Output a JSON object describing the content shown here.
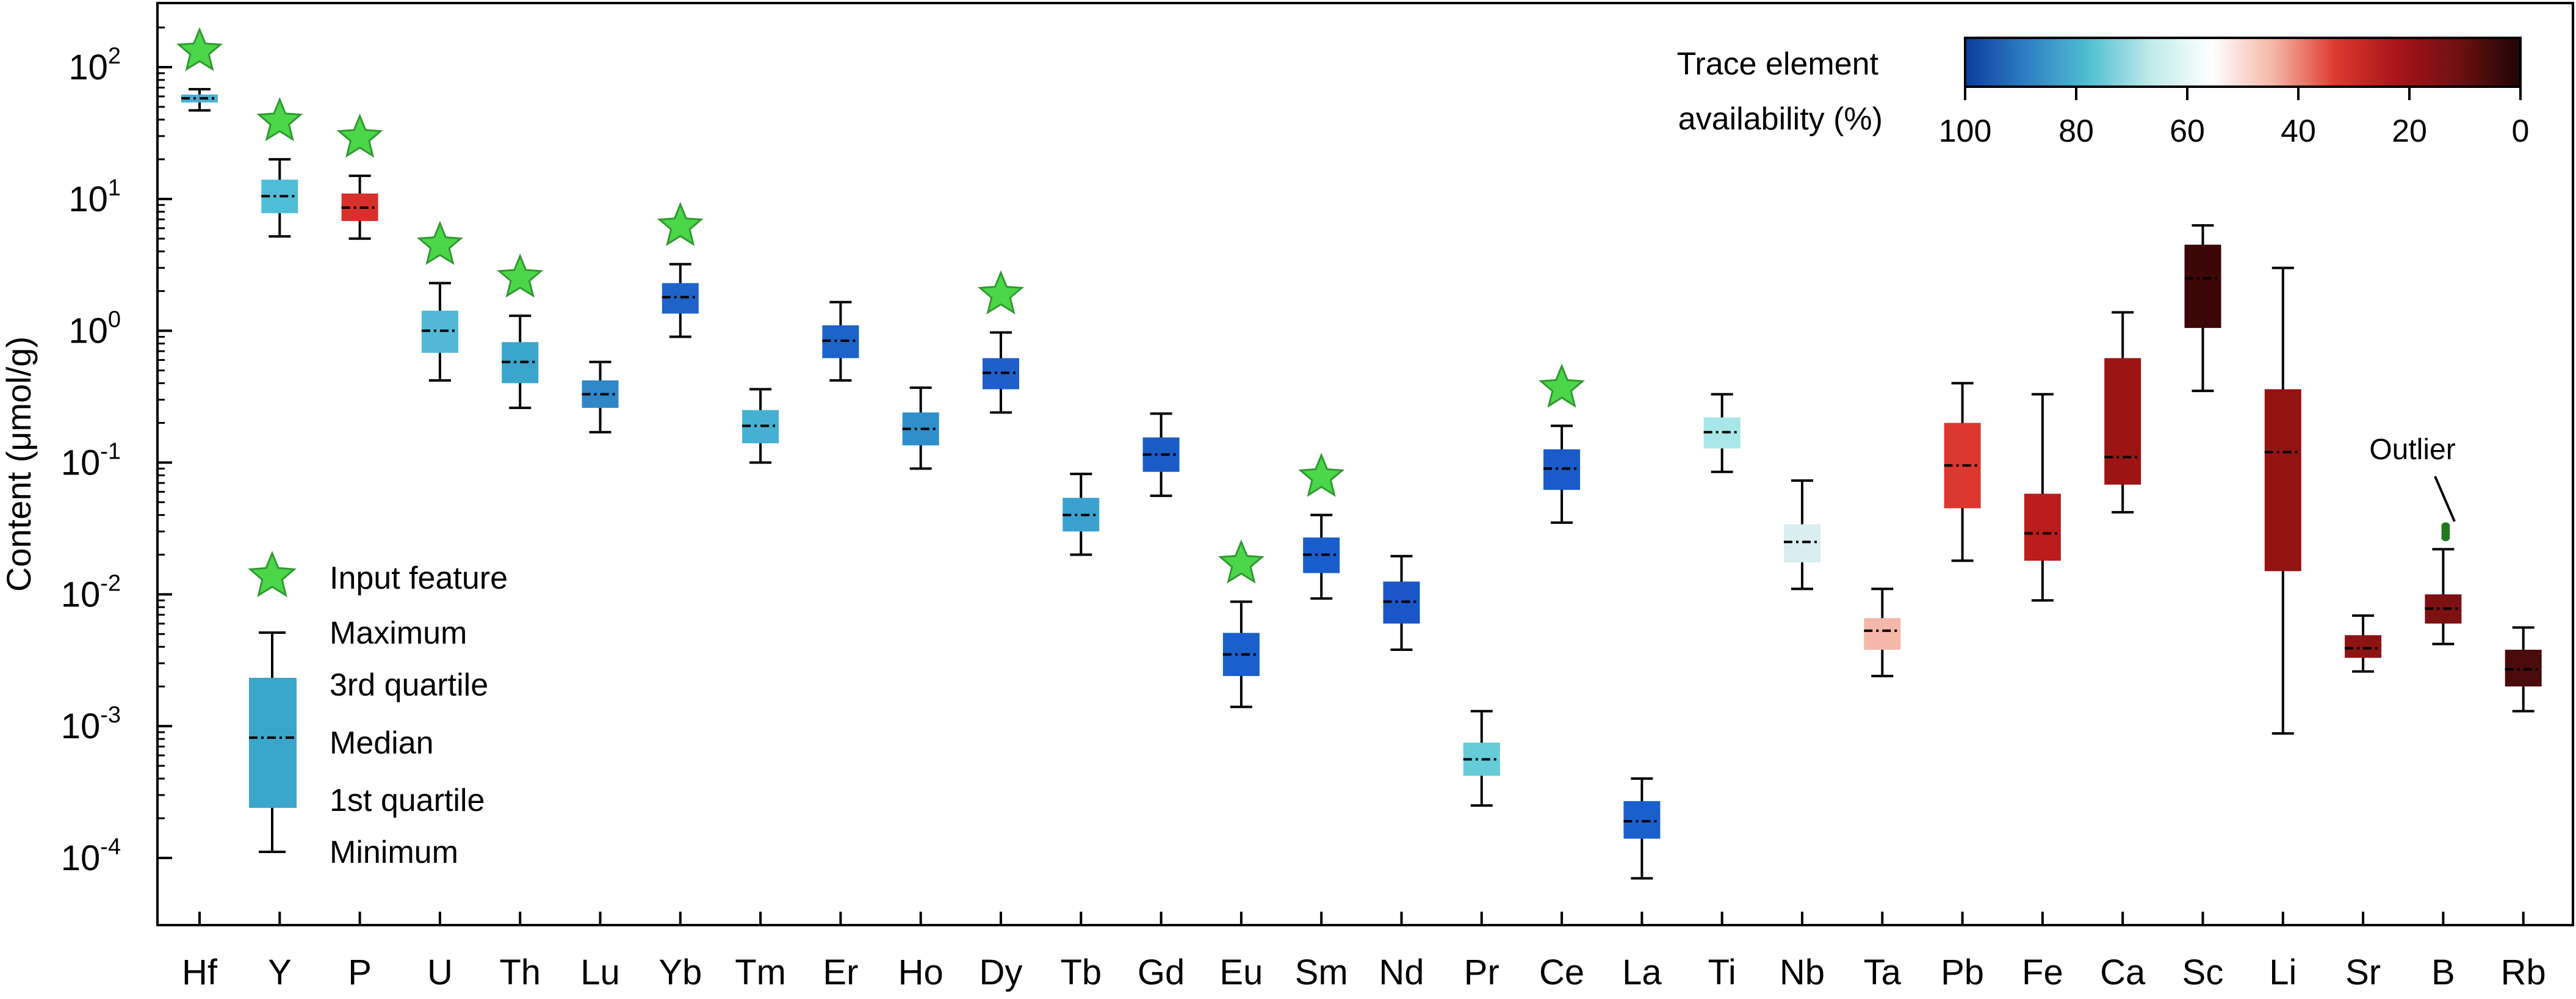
{
  "chart_data": {
    "type": "box",
    "ylabel": "Content (μmol/g)",
    "yscale": "log",
    "ylim": [
      3e-05,
      300
    ],
    "y_ticks": [
      {
        "value": 100,
        "base": "10",
        "exp": "2"
      },
      {
        "value": 10,
        "base": "10",
        "exp": "1"
      },
      {
        "value": 1,
        "base": "10",
        "exp": "0"
      },
      {
        "value": 0.1,
        "base": "10",
        "exp": "-1"
      },
      {
        "value": 0.01,
        "base": "10",
        "exp": "-2"
      },
      {
        "value": 0.001,
        "base": "10",
        "exp": "-3"
      },
      {
        "value": 0.0001,
        "base": "10",
        "exp": "-4"
      }
    ],
    "colorbar": {
      "title_line1": "Trace element",
      "title_line2": "availability (%)",
      "ticks": [
        "100",
        "80",
        "60",
        "40",
        "20",
        "0"
      ],
      "colors": [
        "#0a3d9e",
        "#2f7fc4",
        "#4fbfd0",
        "#bfeaea",
        "#ffffff",
        "#f4b6a6",
        "#de3a2e",
        "#a8141a",
        "#6e1010",
        "#1e0505"
      ]
    },
    "legend": {
      "input_feature": "Input feature",
      "maximum": "Maximum",
      "q3": "3rd quartile",
      "median": "Median",
      "q1": "1st quartile",
      "minimum": "Minimum",
      "box_color": "#3aa6cc"
    },
    "outlier_label": "Outlier",
    "star_color": "#4cd64a",
    "elements": [
      {
        "name": "Hf",
        "min": 47,
        "q1": 54,
        "median": 58,
        "q3": 62,
        "max": 68,
        "color": "#4aaed4",
        "feature": true
      },
      {
        "name": "Y",
        "min": 5.2,
        "q1": 7.8,
        "median": 10.5,
        "q3": 14,
        "max": 20,
        "color": "#4fbdd8",
        "feature": true
      },
      {
        "name": "P",
        "min": 5.0,
        "q1": 6.8,
        "median": 8.6,
        "q3": 11,
        "max": 15,
        "color": "#d8312c",
        "feature": true
      },
      {
        "name": "U",
        "min": 0.42,
        "q1": 0.68,
        "median": 1.0,
        "q3": 1.42,
        "max": 2.3,
        "color": "#52b8d6",
        "feature": true
      },
      {
        "name": "Th",
        "min": 0.26,
        "q1": 0.4,
        "median": 0.58,
        "q3": 0.82,
        "max": 1.3,
        "color": "#3aa6cc",
        "feature": true
      },
      {
        "name": "Lu",
        "min": 0.17,
        "q1": 0.26,
        "median": 0.33,
        "q3": 0.42,
        "max": 0.58,
        "color": "#2f87c8",
        "feature": false
      },
      {
        "name": "Yb",
        "min": 0.9,
        "q1": 1.35,
        "median": 1.8,
        "q3": 2.3,
        "max": 3.2,
        "color": "#1f63c8",
        "feature": true
      },
      {
        "name": "Tm",
        "min": 0.1,
        "q1": 0.14,
        "median": 0.19,
        "q3": 0.25,
        "max": 0.36,
        "color": "#45b0d2",
        "feature": false
      },
      {
        "name": "Er",
        "min": 0.42,
        "q1": 0.62,
        "median": 0.84,
        "q3": 1.1,
        "max": 1.65,
        "color": "#1c64c9",
        "feature": false
      },
      {
        "name": "Ho",
        "min": 0.09,
        "q1": 0.135,
        "median": 0.18,
        "q3": 0.24,
        "max": 0.37,
        "color": "#2f8fca",
        "feature": false
      },
      {
        "name": "Dy",
        "min": 0.24,
        "q1": 0.36,
        "median": 0.48,
        "q3": 0.62,
        "max": 0.97,
        "color": "#1e5fcc",
        "feature": true
      },
      {
        "name": "Tb",
        "min": 0.02,
        "q1": 0.03,
        "median": 0.04,
        "q3": 0.054,
        "max": 0.082,
        "color": "#3ba2cf",
        "feature": false
      },
      {
        "name": "Gd",
        "min": 0.056,
        "q1": 0.085,
        "median": 0.115,
        "q3": 0.155,
        "max": 0.235,
        "color": "#1a5bc6",
        "feature": false
      },
      {
        "name": "Eu",
        "min": 0.0014,
        "q1": 0.0024,
        "median": 0.0035,
        "q3": 0.0051,
        "max": 0.0088,
        "color": "#1a5fcc",
        "feature": true
      },
      {
        "name": "Sm",
        "min": 0.0093,
        "q1": 0.0145,
        "median": 0.02,
        "q3": 0.027,
        "max": 0.04,
        "color": "#1a5ecd",
        "feature": true
      },
      {
        "name": "Nd",
        "min": 0.0038,
        "q1": 0.006,
        "median": 0.0088,
        "q3": 0.0125,
        "max": 0.0195,
        "color": "#1a56c8",
        "feature": false
      },
      {
        "name": "Pr",
        "min": 0.00025,
        "q1": 0.00042,
        "median": 0.00056,
        "q3": 0.00075,
        "max": 0.0013,
        "color": "#66ccd8",
        "feature": false
      },
      {
        "name": "Ce",
        "min": 0.035,
        "q1": 0.062,
        "median": 0.09,
        "q3": 0.126,
        "max": 0.19,
        "color": "#1a5ac9",
        "feature": true
      },
      {
        "name": "La",
        "min": 7e-05,
        "q1": 0.00014,
        "median": 0.00019,
        "q3": 0.00027,
        "max": 0.0004,
        "color": "#1a60cc",
        "feature": false
      },
      {
        "name": "Ti",
        "min": 0.085,
        "q1": 0.128,
        "median": 0.17,
        "q3": 0.22,
        "max": 0.33,
        "color": "#a8e6ea",
        "feature": false
      },
      {
        "name": "Nb",
        "min": 0.011,
        "q1": 0.0175,
        "median": 0.025,
        "q3": 0.034,
        "max": 0.073,
        "color": "#d8eef1",
        "feature": false
      },
      {
        "name": "Ta",
        "min": 0.0024,
        "q1": 0.0038,
        "median": 0.0053,
        "q3": 0.0066,
        "max": 0.011,
        "color": "#f3b8a9",
        "feature": false
      },
      {
        "name": "Pb",
        "min": 0.018,
        "q1": 0.045,
        "median": 0.095,
        "q3": 0.2,
        "max": 0.4,
        "color": "#dc3830",
        "feature": false
      },
      {
        "name": "Fe",
        "min": 0.009,
        "q1": 0.018,
        "median": 0.029,
        "q3": 0.058,
        "max": 0.33,
        "color": "#bb1c1c",
        "feature": false
      },
      {
        "name": "Ca",
        "min": 0.042,
        "q1": 0.068,
        "median": 0.11,
        "q3": 0.62,
        "max": 1.38,
        "color": "#9c1414",
        "feature": false
      },
      {
        "name": "Sc",
        "min": 0.35,
        "q1": 1.05,
        "median": 2.5,
        "q3": 4.5,
        "max": 6.3,
        "color": "#3d0707",
        "feature": false
      },
      {
        "name": "Li",
        "min": 0.00088,
        "q1": 0.015,
        "median": 0.12,
        "q3": 0.36,
        "max": 3.0,
        "color": "#941313",
        "feature": false
      },
      {
        "name": "Sr",
        "min": 0.0026,
        "q1": 0.0033,
        "median": 0.0039,
        "q3": 0.0049,
        "max": 0.0069,
        "color": "#8e1313",
        "feature": false
      },
      {
        "name": "B",
        "min": 0.0042,
        "q1": 0.006,
        "median": 0.0078,
        "q3": 0.01,
        "max": 0.022,
        "color": "#7d1010",
        "feature": false,
        "outliers": [
          0.027,
          0.0285,
          0.03,
          0.0315,
          0.033
        ]
      },
      {
        "name": "Rb",
        "min": 0.0013,
        "q1": 0.002,
        "median": 0.0027,
        "q3": 0.0038,
        "max": 0.0056,
        "color": "#4a0b0b",
        "feature": false
      }
    ]
  }
}
